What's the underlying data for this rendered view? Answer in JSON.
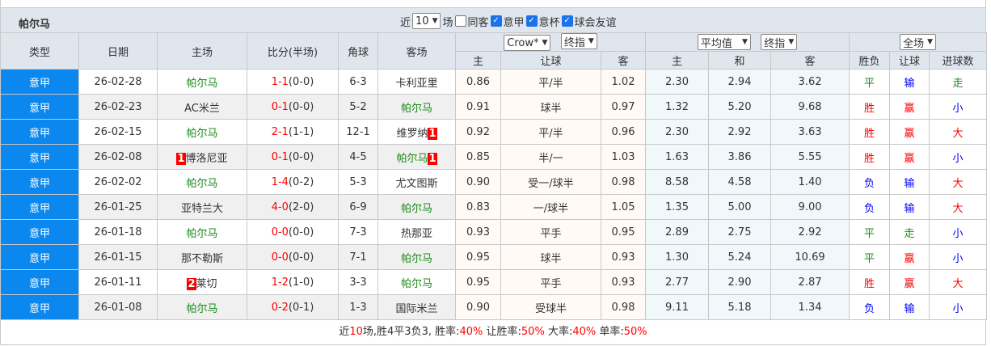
{
  "team": "帕尔马",
  "filters": {
    "near_label": "近",
    "count": "10",
    "unit": "场",
    "checks": [
      {
        "label": "同客",
        "checked": false
      },
      {
        "label": "意甲",
        "checked": true
      },
      {
        "label": "意杯",
        "checked": true
      },
      {
        "label": "球会友谊",
        "checked": true
      }
    ]
  },
  "headers": {
    "type": "类型",
    "date": "日期",
    "home": "主场",
    "score": "比分(半场)",
    "corner": "角球",
    "away": "客场",
    "company": "Crow*",
    "odds_type1": "终指",
    "avg": "平均值",
    "odds_type2": "终指",
    "period": "全场",
    "sub": [
      "主",
      "让球",
      "客",
      "主",
      "和",
      "客",
      "胜负",
      "让球",
      "进球数"
    ]
  },
  "rows": [
    {
      "type": "意甲",
      "date": "26-02-28",
      "home": "帕尔马",
      "home_green": true,
      "home_rc": "",
      "score": "1-1",
      "half": "(0-0)",
      "corner": "6-3",
      "away": "卡利亚里",
      "away_green": false,
      "away_rc": "",
      "h": "0.86",
      "hc": "平/半",
      "a": "1.02",
      "w": "2.30",
      "d": "2.94",
      "l": "3.62",
      "r1": "平",
      "r2": "输",
      "r3": "走"
    },
    {
      "type": "意甲",
      "date": "26-02-23",
      "home": "AC米兰",
      "home_green": false,
      "home_rc": "",
      "score": "0-1",
      "half": "(0-0)",
      "corner": "5-2",
      "away": "帕尔马",
      "away_green": true,
      "away_rc": "",
      "h": "0.91",
      "hc": "球半",
      "a": "0.97",
      "w": "1.32",
      "d": "5.20",
      "l": "9.68",
      "r1": "胜",
      "r2": "赢",
      "r3": "小"
    },
    {
      "type": "意甲",
      "date": "26-02-15",
      "home": "帕尔马",
      "home_green": true,
      "home_rc": "",
      "score": "2-1",
      "half": "(1-1)",
      "corner": "12-1",
      "away": "维罗纳",
      "away_green": false,
      "away_rc": "1",
      "h": "0.92",
      "hc": "平/半",
      "a": "0.96",
      "w": "2.30",
      "d": "2.92",
      "l": "3.63",
      "r1": "胜",
      "r2": "赢",
      "r3": "大"
    },
    {
      "type": "意甲",
      "date": "26-02-08",
      "home": "博洛尼亚",
      "home_green": false,
      "home_rc": "1",
      "score": "0-1",
      "half": "(0-0)",
      "corner": "4-5",
      "away": "帕尔马",
      "away_green": true,
      "away_rc": "1",
      "h": "0.85",
      "hc": "半/一",
      "a": "1.03",
      "w": "1.63",
      "d": "3.86",
      "l": "5.55",
      "r1": "胜",
      "r2": "赢",
      "r3": "小"
    },
    {
      "type": "意甲",
      "date": "26-02-02",
      "home": "帕尔马",
      "home_green": true,
      "home_rc": "",
      "score": "1-4",
      "half": "(0-2)",
      "corner": "5-3",
      "away": "尤文图斯",
      "away_green": false,
      "away_rc": "",
      "h": "0.90",
      "hc": "受一/球半",
      "a": "0.98",
      "w": "8.58",
      "d": "4.58",
      "l": "1.40",
      "r1": "负",
      "r2": "输",
      "r3": "大"
    },
    {
      "type": "意甲",
      "date": "26-01-25",
      "home": "亚特兰大",
      "home_green": false,
      "home_rc": "",
      "score": "4-0",
      "half": "(2-0)",
      "corner": "6-9",
      "away": "帕尔马",
      "away_green": true,
      "away_rc": "",
      "h": "0.83",
      "hc": "一/球半",
      "a": "1.05",
      "w": "1.35",
      "d": "5.00",
      "l": "9.00",
      "r1": "负",
      "r2": "输",
      "r3": "大"
    },
    {
      "type": "意甲",
      "date": "26-01-18",
      "home": "帕尔马",
      "home_green": true,
      "home_rc": "",
      "score": "0-0",
      "half": "(0-0)",
      "corner": "7-3",
      "away": "热那亚",
      "away_green": false,
      "away_rc": "",
      "h": "0.93",
      "hc": "平手",
      "a": "0.95",
      "w": "2.89",
      "d": "2.75",
      "l": "2.92",
      "r1": "平",
      "r2": "走",
      "r3": "小"
    },
    {
      "type": "意甲",
      "date": "26-01-15",
      "home": "那不勒斯",
      "home_green": false,
      "home_rc": "",
      "score": "0-0",
      "half": "(0-0)",
      "corner": "7-1",
      "away": "帕尔马",
      "away_green": true,
      "away_rc": "",
      "h": "0.95",
      "hc": "球半",
      "a": "0.93",
      "w": "1.30",
      "d": "5.24",
      "l": "10.69",
      "r1": "平",
      "r2": "赢",
      "r3": "小"
    },
    {
      "type": "意甲",
      "date": "26-01-11",
      "home": "莱切",
      "home_green": false,
      "home_rc": "2",
      "score": "1-2",
      "half": "(1-0)",
      "corner": "3-3",
      "away": "帕尔马",
      "away_green": true,
      "away_rc": "",
      "h": "0.95",
      "hc": "平手",
      "a": "0.93",
      "w": "2.77",
      "d": "2.90",
      "l": "2.87",
      "r1": "胜",
      "r2": "赢",
      "r3": "大"
    },
    {
      "type": "意甲",
      "date": "26-01-08",
      "home": "帕尔马",
      "home_green": true,
      "home_rc": "",
      "score": "0-2",
      "half": "(0-1)",
      "corner": "1-3",
      "away": "国际米兰",
      "away_green": false,
      "away_rc": "",
      "h": "0.90",
      "hc": "受球半",
      "a": "0.98",
      "w": "9.11",
      "d": "5.18",
      "l": "1.34",
      "r1": "负",
      "r2": "输",
      "r3": "小"
    }
  ],
  "summary": {
    "p1": "近",
    "n": "10",
    "p2": "场,胜4平3负3, 胜率:",
    "win": "40%",
    "p3": " 让胜率:",
    "hwin": "50%",
    "p4": " 大率:",
    "big": "40%",
    "p5": " 单率:",
    "odd": "50%"
  },
  "colors": {
    "win": "#ff0000",
    "draw": "#1a8a1a",
    "lose": "#0000ff",
    "type_bg": "#0a88f0"
  }
}
